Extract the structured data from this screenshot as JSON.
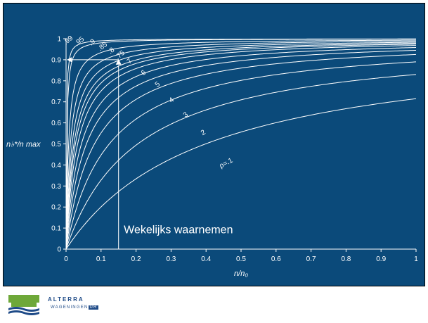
{
  "colors": {
    "background": "#0b4a7a",
    "curve": "#ffffff",
    "text": "#ffffff",
    "logo_blue": "#1f4b88",
    "logo_green": "#6ea839"
  },
  "chart_data": {
    "type": "line",
    "title": "",
    "xlabel": "n/n₀",
    "ylabel": "n♭*/n max",
    "xlim": [
      0,
      1
    ],
    "ylim": [
      0,
      1
    ],
    "x_ticks": [
      "0",
      "0.1",
      "0.2",
      "0.3",
      "0.4",
      "0.5",
      "0.6",
      "0.7",
      "0.8",
      "0.9",
      "1"
    ],
    "y_ticks": [
      "0",
      "0.1",
      "0.2",
      "0.3",
      "0.4",
      "0.5",
      "0.6",
      "0.7",
      "0.8",
      "0.9",
      "1"
    ],
    "grid": false,
    "legend": "none",
    "series": [
      {
        "label": "ρ=.1",
        "y_at_x1": 0.715,
        "label_x": 0.46,
        "label_y": 0.4,
        "rot": -28
      },
      {
        "label": "2",
        "y_at_x1": 0.83,
        "label_x": 0.395,
        "label_y": 0.545,
        "rot": -33
      },
      {
        "label": "3",
        "y_at_x1": 0.89,
        "label_x": 0.345,
        "label_y": 0.63,
        "rot": -35
      },
      {
        "label": "4",
        "y_at_x1": 0.925,
        "label_x": 0.305,
        "label_y": 0.7,
        "rot": -37
      },
      {
        "label": "5",
        "y_at_x1": 0.945,
        "label_x": 0.265,
        "label_y": 0.775,
        "rot": -38
      },
      {
        "label": "6",
        "y_at_x1": 0.958,
        "label_x": 0.225,
        "label_y": 0.83,
        "rot": -38
      },
      {
        "label": "7",
        "y_at_x1": 0.968,
        "label_x": 0.185,
        "label_y": 0.885,
        "rot": -40
      },
      {
        "label": ".75",
        "y_at_x1": 0.974,
        "label_x": 0.158,
        "label_y": 0.915,
        "rot": -40
      },
      {
        "label": ".8",
        "y_at_x1": 0.978,
        "label_x": 0.133,
        "label_y": 0.935,
        "rot": -40
      },
      {
        "label": ".85",
        "y_at_x1": 0.983,
        "label_x": 0.108,
        "label_y": 0.955,
        "rot": -40
      },
      {
        "label": ".9",
        "y_at_x1": 0.988,
        "label_x": 0.078,
        "label_y": 0.975,
        "rot": -40
      },
      {
        "label": ".95",
        "y_at_x1": 0.993,
        "label_x": 0.042,
        "label_y": 0.98,
        "rot": -40
      },
      {
        "label": ".99",
        "y_at_x1": 0.998,
        "label_x": 0.01,
        "label_y": 0.985,
        "rot": -40
      },
      {
        "label": "",
        "y_at_x1": 0.999
      }
    ],
    "annotations": {
      "vertical_line_x": 0.15,
      "marker_x": 0.15,
      "marker_y": 0.9,
      "horizontal_line_y": 0.9,
      "text": "Wekelijks waarnemen",
      "text_x": 0.165,
      "text_y": 0.075
    }
  },
  "footer": {
    "org_name": "ALTERRA",
    "sub_name": "WAGENINGEN",
    "sub_badge": "UR"
  }
}
